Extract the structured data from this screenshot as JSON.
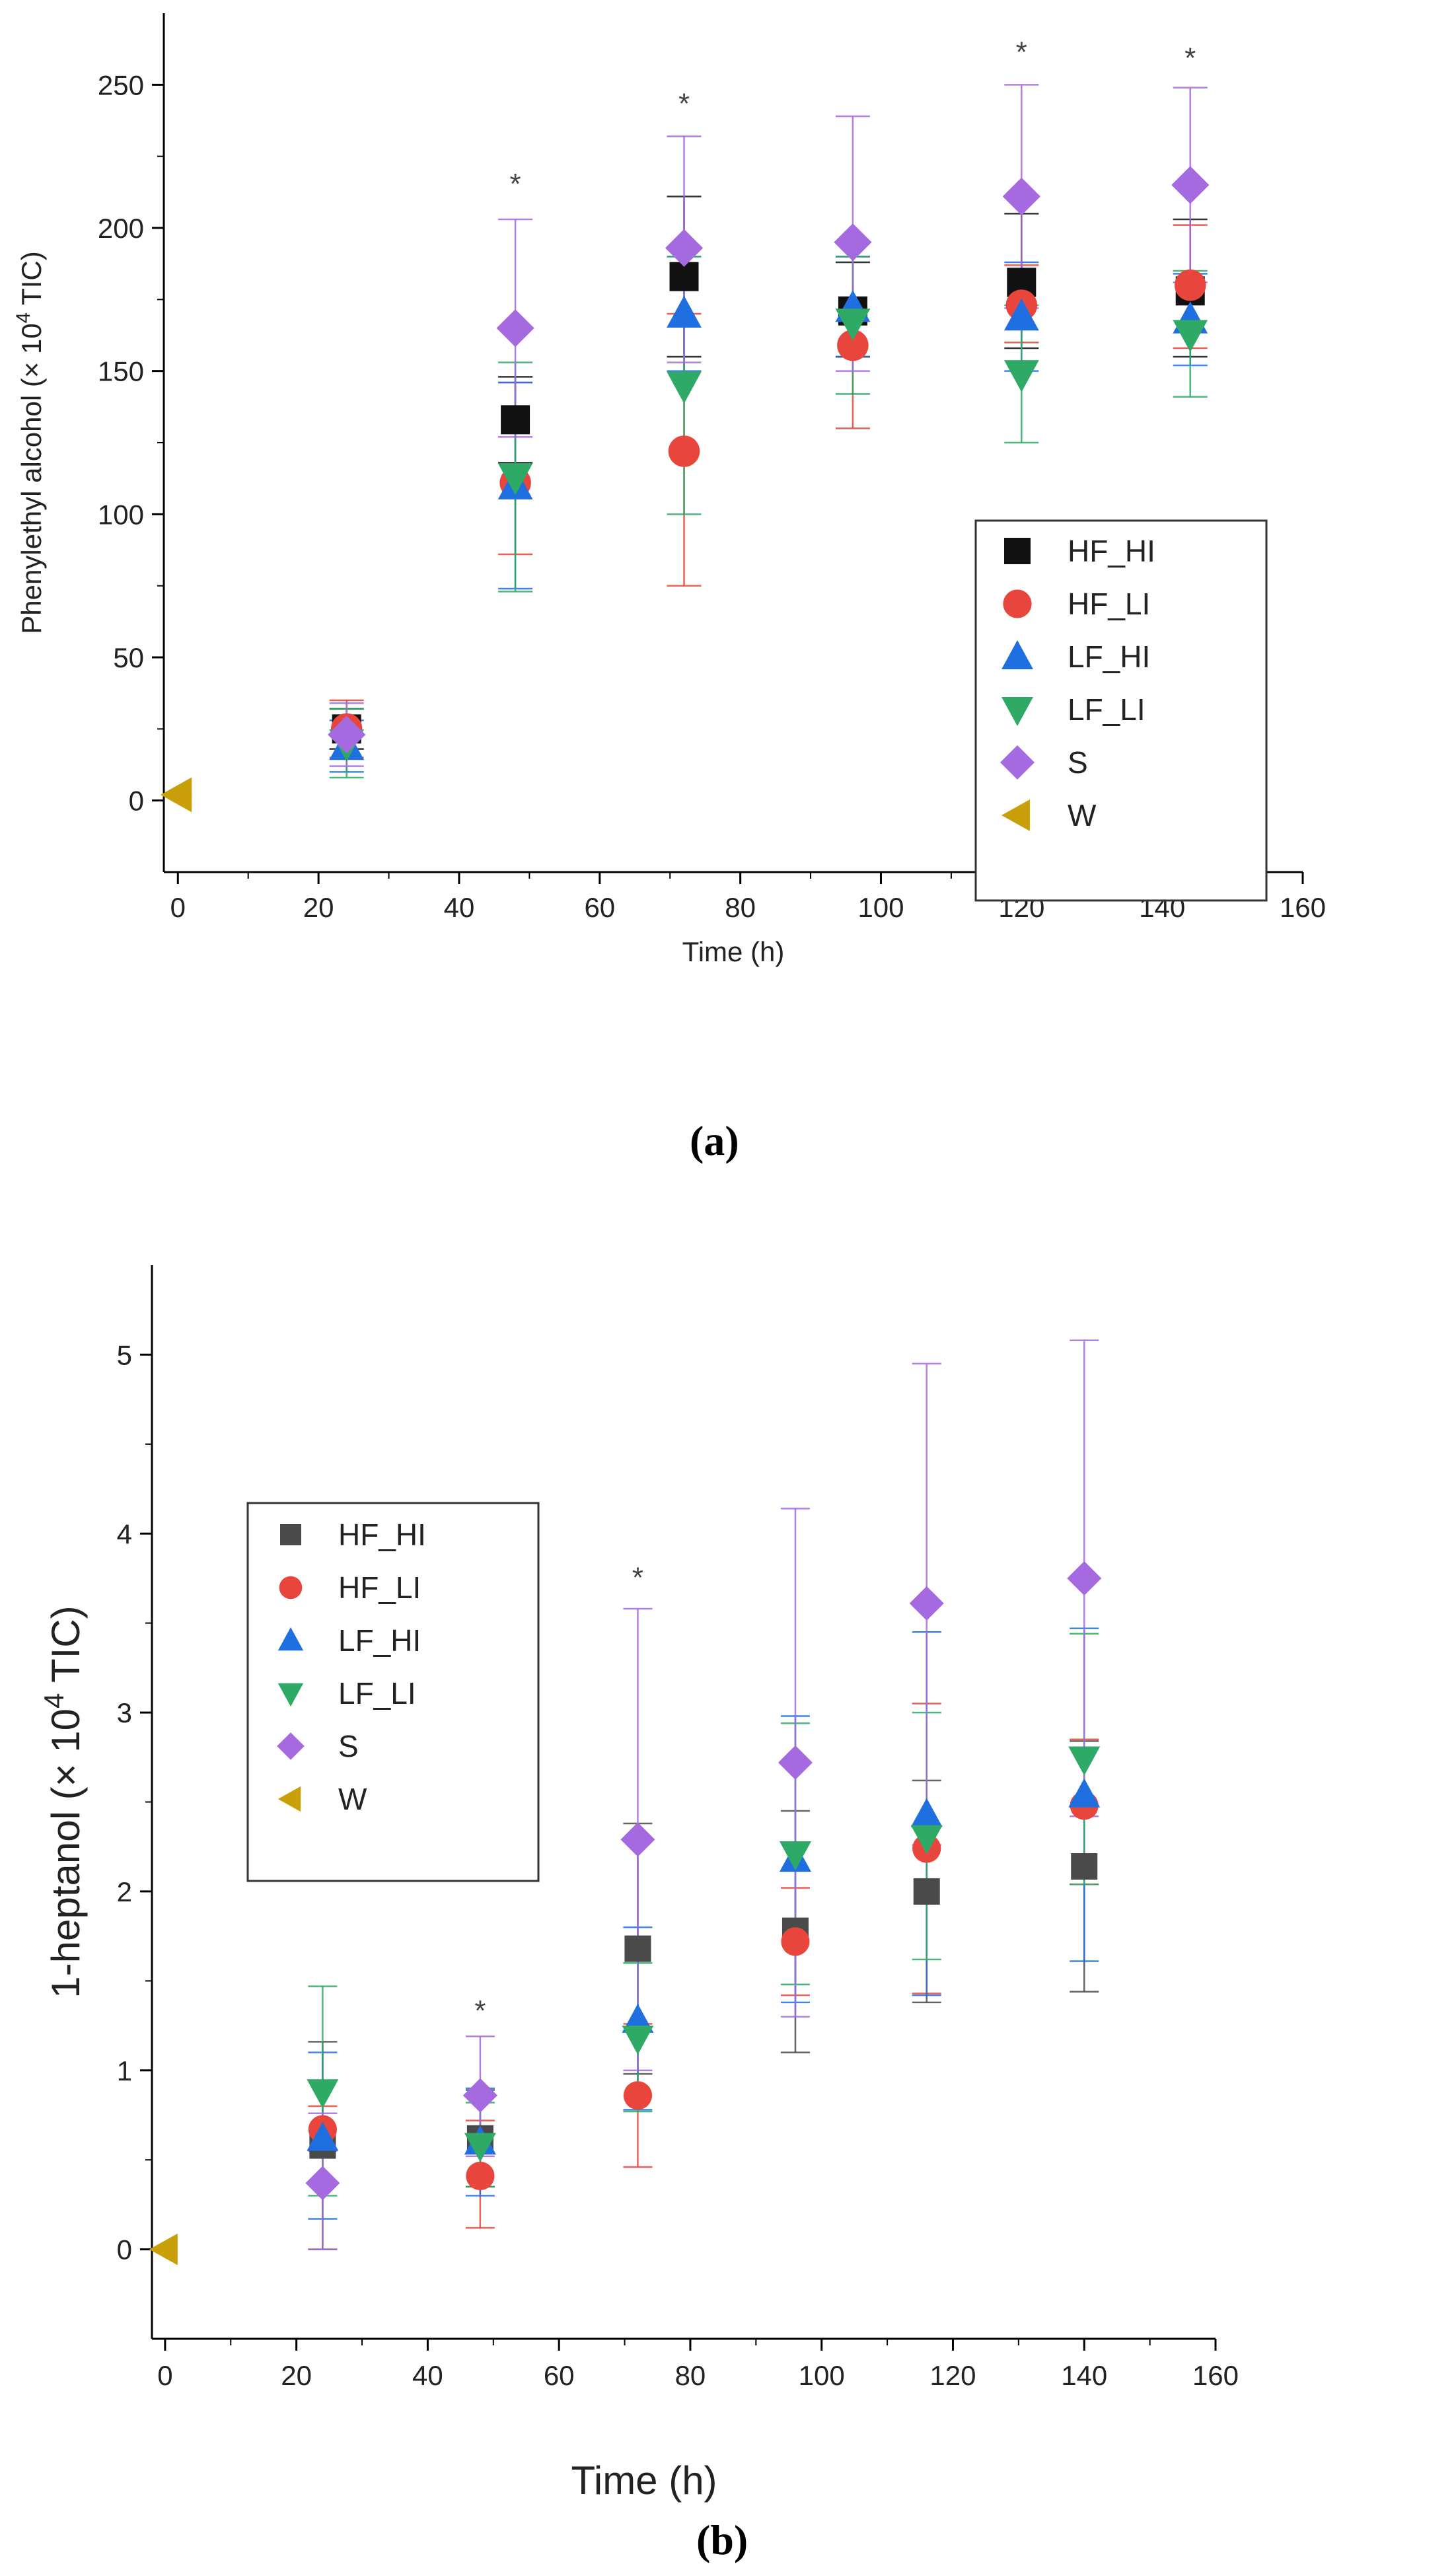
{
  "colors": {
    "HF_HI": "#111111",
    "HF_LI": "#e8453c",
    "LF_HI": "#1f6fe0",
    "LF_LI": "#2eaa66",
    "S": "#a56ae0",
    "W": "#c9a009",
    "HF_HI_b": "#4a4a4a"
  },
  "chart_data": [
    {
      "type": "scatter",
      "panel_label": "(a)",
      "title": "",
      "xlabel": "Time (h)",
      "ylabel_prefix": "Phenylethyl alcohol (× 10",
      "ylabel_sup": "4",
      "ylabel_suffix": " TIC)",
      "xlim": [
        -2,
        160
      ],
      "ylim": [
        -25,
        275
      ],
      "xticks": [
        0,
        20,
        40,
        60,
        80,
        100,
        120,
        140,
        160
      ],
      "yticks": [
        0,
        50,
        100,
        150,
        200,
        250
      ],
      "legend_position": "right",
      "significance": [
        {
          "x": 48,
          "y": 212,
          "text": "*"
        },
        {
          "x": 72,
          "y": 240,
          "text": "*"
        },
        {
          "x": 120,
          "y": 258,
          "text": "*"
        },
        {
          "x": 144,
          "y": 256,
          "text": "*"
        }
      ],
      "series": [
        {
          "name": "HF_HI",
          "marker": "square",
          "points": [
            {
              "x": 24,
              "y": 25,
              "lo": 18,
              "hi": 32
            },
            {
              "x": 48,
              "y": 133,
              "lo": 118,
              "hi": 148
            },
            {
              "x": 72,
              "y": 183,
              "lo": 155,
              "hi": 211
            },
            {
              "x": 96,
              "y": 171,
              "lo": 155,
              "hi": 188
            },
            {
              "x": 120,
              "y": 181,
              "lo": 158,
              "hi": 205
            },
            {
              "x": 144,
              "y": 178,
              "lo": 155,
              "hi": 203
            }
          ]
        },
        {
          "name": "HF_LI",
          "marker": "circle",
          "points": [
            {
              "x": 24,
              "y": 25,
              "lo": 15,
              "hi": 35
            },
            {
              "x": 48,
              "y": 111,
              "lo": 86,
              "hi": 146
            },
            {
              "x": 72,
              "y": 122,
              "lo": 75,
              "hi": 170
            },
            {
              "x": 96,
              "y": 159,
              "lo": 130,
              "hi": 190
            },
            {
              "x": 120,
              "y": 173,
              "lo": 160,
              "hi": 187
            },
            {
              "x": 144,
              "y": 180,
              "lo": 158,
              "hi": 201
            }
          ]
        },
        {
          "name": "LF_HI",
          "marker": "triangle-up",
          "points": [
            {
              "x": 24,
              "y": 19,
              "lo": 10,
              "hi": 28
            },
            {
              "x": 48,
              "y": 110,
              "lo": 74,
              "hi": 146
            },
            {
              "x": 72,
              "y": 170,
              "lo": 150,
              "hi": 190
            },
            {
              "x": 96,
              "y": 172,
              "lo": 155,
              "hi": 190
            },
            {
              "x": 120,
              "y": 169,
              "lo": 150,
              "hi": 188
            },
            {
              "x": 144,
              "y": 168,
              "lo": 152,
              "hi": 184
            }
          ]
        },
        {
          "name": "LF_LI",
          "marker": "triangle-down",
          "points": [
            {
              "x": 24,
              "y": 20,
              "lo": 8,
              "hi": 32
            },
            {
              "x": 48,
              "y": 113,
              "lo": 73,
              "hi": 153
            },
            {
              "x": 72,
              "y": 145,
              "lo": 100,
              "hi": 190
            },
            {
              "x": 96,
              "y": 167,
              "lo": 142,
              "hi": 190
            },
            {
              "x": 120,
              "y": 149,
              "lo": 125,
              "hi": 173
            },
            {
              "x": 144,
              "y": 163,
              "lo": 141,
              "hi": 185
            }
          ]
        },
        {
          "name": "S",
          "marker": "diamond",
          "points": [
            {
              "x": 24,
              "y": 23,
              "lo": 12,
              "hi": 34
            },
            {
              "x": 48,
              "y": 165,
              "lo": 127,
              "hi": 203
            },
            {
              "x": 72,
              "y": 193,
              "lo": 153,
              "hi": 232
            },
            {
              "x": 96,
              "y": 195,
              "lo": 150,
              "hi": 239
            },
            {
              "x": 120,
              "y": 211,
              "lo": 172,
              "hi": 250
            },
            {
              "x": 144,
              "y": 215,
              "lo": 181,
              "hi": 249
            }
          ]
        },
        {
          "name": "W",
          "marker": "triangle-left",
          "points": [
            {
              "x": 0,
              "y": 2,
              "lo": 2,
              "hi": 2
            }
          ]
        }
      ]
    },
    {
      "type": "scatter",
      "panel_label": "(b)",
      "title": "",
      "xlabel": "Time (h)",
      "ylabel_prefix": "1-heptanol (× 10",
      "ylabel_sup": "4",
      "ylabel_suffix": " TIC)",
      "xlim": [
        -2,
        160
      ],
      "ylim": [
        -0.5,
        5.5
      ],
      "xticks": [
        0,
        20,
        40,
        60,
        80,
        100,
        120,
        140,
        160
      ],
      "yticks": [
        0,
        1,
        2,
        3,
        4,
        5
      ],
      "legend_position": "top-left",
      "significance": [
        {
          "x": 48,
          "y": 1.28,
          "text": "*"
        },
        {
          "x": 72,
          "y": 3.7,
          "text": "*"
        }
      ],
      "series": [
        {
          "name": "HF_HI",
          "marker": "square",
          "points": [
            {
              "x": 24,
              "y": 0.58,
              "lo": 0.0,
              "hi": 1.16
            },
            {
              "x": 48,
              "y": 0.62,
              "lo": 0.35,
              "hi": 0.89
            },
            {
              "x": 72,
              "y": 1.68,
              "lo": 0.98,
              "hi": 2.38
            },
            {
              "x": 96,
              "y": 1.78,
              "lo": 1.1,
              "hi": 2.45
            },
            {
              "x": 116,
              "y": 2.0,
              "lo": 1.38,
              "hi": 2.62
            },
            {
              "x": 140,
              "y": 2.14,
              "lo": 1.44,
              "hi": 2.84
            }
          ]
        },
        {
          "name": "HF_LI",
          "marker": "circle",
          "points": [
            {
              "x": 24,
              "y": 0.67,
              "lo": 0.55,
              "hi": 0.8
            },
            {
              "x": 48,
              "y": 0.41,
              "lo": 0.12,
              "hi": 0.72
            },
            {
              "x": 72,
              "y": 0.86,
              "lo": 0.46,
              "hi": 1.26
            },
            {
              "x": 96,
              "y": 1.72,
              "lo": 1.42,
              "hi": 2.02
            },
            {
              "x": 116,
              "y": 2.24,
              "lo": 1.43,
              "hi": 3.05
            },
            {
              "x": 140,
              "y": 2.48,
              "lo": 2.04,
              "hi": 2.85
            }
          ]
        },
        {
          "name": "LF_HI",
          "marker": "triangle-up",
          "points": [
            {
              "x": 24,
              "y": 0.62,
              "lo": 0.17,
              "hi": 1.1
            },
            {
              "x": 48,
              "y": 0.6,
              "lo": 0.3,
              "hi": 0.9
            },
            {
              "x": 72,
              "y": 1.28,
              "lo": 0.78,
              "hi": 1.8
            },
            {
              "x": 96,
              "y": 2.18,
              "lo": 1.38,
              "hi": 2.98
            },
            {
              "x": 116,
              "y": 2.43,
              "lo": 1.42,
              "hi": 3.45
            },
            {
              "x": 140,
              "y": 2.54,
              "lo": 1.61,
              "hi": 3.47
            }
          ]
        },
        {
          "name": "LF_LI",
          "marker": "triangle-down",
          "points": [
            {
              "x": 24,
              "y": 0.88,
              "lo": 0.3,
              "hi": 1.47
            },
            {
              "x": 48,
              "y": 0.58,
              "lo": 0.35,
              "hi": 0.82
            },
            {
              "x": 72,
              "y": 1.18,
              "lo": 0.77,
              "hi": 1.6
            },
            {
              "x": 96,
              "y": 2.21,
              "lo": 1.48,
              "hi": 2.94
            },
            {
              "x": 116,
              "y": 2.3,
              "lo": 1.62,
              "hi": 3.0
            },
            {
              "x": 140,
              "y": 2.74,
              "lo": 2.04,
              "hi": 3.44
            }
          ]
        },
        {
          "name": "S",
          "marker": "diamond",
          "points": [
            {
              "x": 24,
              "y": 0.37,
              "lo": 0.0,
              "hi": 0.76
            },
            {
              "x": 48,
              "y": 0.86,
              "lo": 0.52,
              "hi": 1.19
            },
            {
              "x": 72,
              "y": 2.29,
              "lo": 1.0,
              "hi": 3.58
            },
            {
              "x": 96,
              "y": 2.72,
              "lo": 1.3,
              "hi": 4.14
            },
            {
              "x": 116,
              "y": 3.61,
              "lo": 2.26,
              "hi": 4.95
            },
            {
              "x": 140,
              "y": 3.75,
              "lo": 2.42,
              "hi": 5.08
            }
          ]
        },
        {
          "name": "W",
          "marker": "triangle-left",
          "points": [
            {
              "x": 0,
              "y": 0.0,
              "lo": 0.0,
              "hi": 0.0
            }
          ]
        }
      ]
    }
  ]
}
